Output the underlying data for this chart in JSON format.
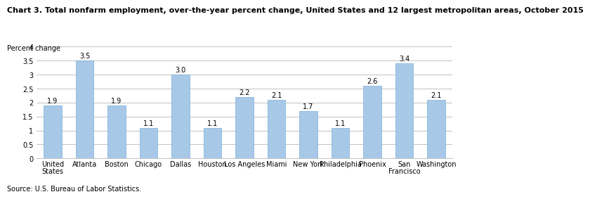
{
  "title": "Chart 3. Total nonfarm employment, over-the-year percent change, United States and 12 largest metropolitan areas, October 2015",
  "ylabel": "Percent change",
  "source": "Source: U.S. Bureau of Labor Statistics.",
  "categories": [
    "United\nStates",
    "Atlanta",
    "Boston",
    "Chicago",
    "Dallas",
    "Houston",
    "Los Angeles",
    "Miami",
    "New York",
    "Philadelphia",
    "Phoenix",
    "San\nFrancisco",
    "Washington"
  ],
  "values": [
    1.9,
    3.5,
    1.9,
    1.1,
    3.0,
    1.1,
    2.2,
    2.1,
    1.7,
    1.1,
    2.6,
    3.4,
    2.1
  ],
  "bar_color": "#a8c8e8",
  "bar_edge_color": "#7ab0d8",
  "ylim": [
    0,
    4
  ],
  "yticks": [
    0,
    0.5,
    1.0,
    1.5,
    2.0,
    2.5,
    3.0,
    3.5,
    4.0
  ],
  "ytick_labels": [
    "0",
    "0.5",
    "1",
    "1.5",
    "2",
    "2.5",
    "3",
    "3.5",
    "4"
  ],
  "title_fontsize": 8,
  "label_fontsize": 7,
  "value_fontsize": 7,
  "axis_fontsize": 7,
  "source_fontsize": 7,
  "bar_width": 0.55
}
